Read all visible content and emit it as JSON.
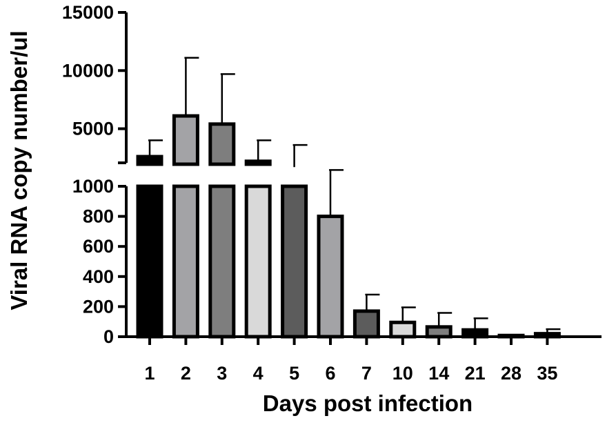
{
  "chart_data": {
    "type": "bar",
    "xlabel": "Days post infection",
    "ylabel": "Viral RNA copy number/ul",
    "categories": [
      "1",
      "2",
      "3",
      "4",
      "5",
      "6",
      "7",
      "10",
      "14",
      "21",
      "28",
      "35"
    ],
    "values": [
      2600,
      6100,
      5400,
      2200,
      1700,
      800,
      170,
      95,
      65,
      45,
      8,
      20
    ],
    "error_upper": [
      4000,
      11100,
      9700,
      4000,
      3600,
      1450,
      280,
      195,
      158,
      122,
      12,
      50
    ],
    "bar_colors": [
      "#000000",
      "#a3a3a6",
      "#7e7e7e",
      "#d9d9d9",
      "#5c5c5c",
      "#a3a3a6",
      "#5c5c5c",
      "#d9d9d9",
      "#7e7e7e",
      "#000000",
      "#a3a3a6",
      "#7e7e7e"
    ],
    "y_break": true,
    "ylim_lower": [
      0,
      1000
    ],
    "ylim_upper": [
      1000,
      15000
    ],
    "y_ticks_lower": [
      "0",
      "200",
      "400",
      "600",
      "800",
      "1000"
    ],
    "y_ticks_upper": [
      "5000",
      "10000",
      "15000"
    ],
    "grid": false,
    "legend": "none"
  }
}
